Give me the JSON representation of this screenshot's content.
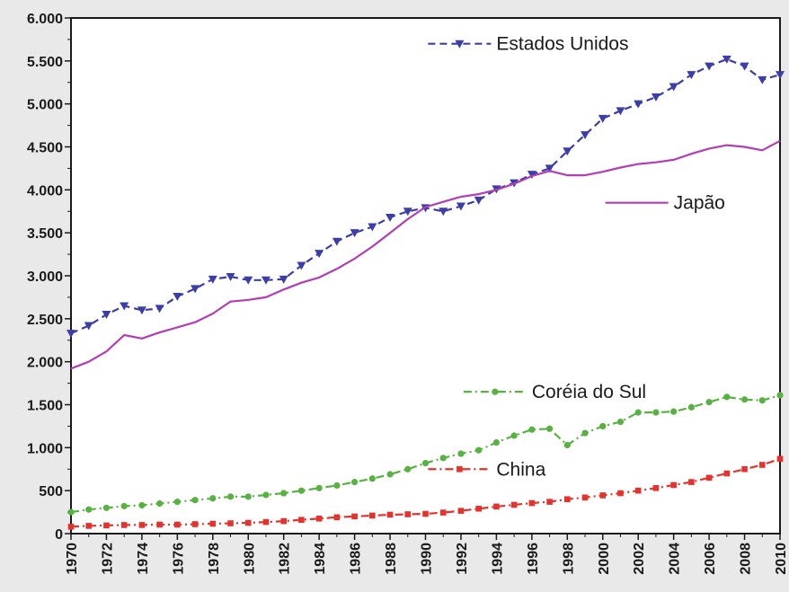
{
  "chart_data": {
    "type": "line",
    "title": "",
    "xlabel": "",
    "ylabel": "",
    "xlim": [
      1970,
      2010
    ],
    "ylim": [
      0,
      6000
    ],
    "grid": false,
    "x": [
      1970,
      1971,
      1972,
      1973,
      1974,
      1975,
      1976,
      1977,
      1978,
      1979,
      1980,
      1981,
      1982,
      1983,
      1984,
      1985,
      1986,
      1987,
      1988,
      1989,
      1990,
      1991,
      1992,
      1993,
      1994,
      1995,
      1996,
      1997,
      1998,
      1999,
      2000,
      2001,
      2002,
      2003,
      2004,
      2005,
      2006,
      2007,
      2008,
      2009,
      2010
    ],
    "x_tick_labels": [
      "1970",
      "1972",
      "1974",
      "1976",
      "1978",
      "1980",
      "1982",
      "1984",
      "1986",
      "1988",
      "1990",
      "1992",
      "1994",
      "1996",
      "1998",
      "2000",
      "2002",
      "2004",
      "2006",
      "2008",
      "2010"
    ],
    "y_tick_labels": [
      "0",
      "500",
      "1.000",
      "1.500",
      "2.000",
      "2.500",
      "3.000",
      "3.500",
      "4.000",
      "4.500",
      "5.000",
      "5.500",
      "6.000"
    ],
    "y_ticks": [
      0,
      500,
      1000,
      1500,
      2000,
      2500,
      3000,
      3500,
      4000,
      4500,
      5000,
      5500,
      6000
    ],
    "series": [
      {
        "name": "Estados Unidos",
        "color": "#3b3ea8",
        "style": "dashed",
        "marker": "triangle-down",
        "label_anchor": [
          1994,
          5700
        ],
        "values": [
          2330,
          2420,
          2550,
          2650,
          2600,
          2620,
          2760,
          2850,
          2960,
          2990,
          2950,
          2950,
          2960,
          3120,
          3260,
          3400,
          3500,
          3570,
          3680,
          3750,
          3790,
          3750,
          3810,
          3880,
          4010,
          4080,
          4180,
          4250,
          4450,
          4640,
          4830,
          4920,
          5000,
          5080,
          5200,
          5340,
          5440,
          5520,
          5440,
          5280,
          5340
        ]
      },
      {
        "name": "Japão",
        "color": "#b13eb2",
        "style": "solid",
        "marker": "none",
        "label_anchor": [
          2004,
          3850
        ],
        "values": [
          1920,
          2000,
          2120,
          2310,
          2270,
          2340,
          2400,
          2460,
          2560,
          2700,
          2720,
          2750,
          2840,
          2920,
          2980,
          3080,
          3200,
          3340,
          3500,
          3660,
          3800,
          3860,
          3920,
          3950,
          4000,
          4070,
          4160,
          4220,
          4170,
          4170,
          4210,
          4260,
          4300,
          4320,
          4350,
          4420,
          4480,
          4520,
          4500,
          4460,
          4570
        ]
      },
      {
        "name": "Coréia do Sul",
        "color": "#57b241",
        "style": "dash-dot",
        "marker": "circle",
        "label_anchor": [
          1996,
          1650
        ],
        "values": [
          250,
          280,
          300,
          320,
          330,
          350,
          370,
          390,
          410,
          430,
          430,
          450,
          470,
          500,
          530,
          560,
          600,
          640,
          690,
          750,
          820,
          880,
          930,
          970,
          1060,
          1140,
          1210,
          1220,
          1030,
          1170,
          1250,
          1300,
          1410,
          1410,
          1420,
          1470,
          1530,
          1590,
          1560,
          1550,
          1610
        ]
      },
      {
        "name": "China",
        "color": "#e5322d",
        "style": "dash-dot",
        "marker": "square",
        "label_anchor": [
          1994,
          750
        ],
        "values": [
          80,
          90,
          95,
          100,
          100,
          105,
          105,
          110,
          115,
          120,
          125,
          135,
          145,
          160,
          175,
          190,
          200,
          210,
          220,
          225,
          230,
          245,
          265,
          290,
          315,
          335,
          355,
          370,
          400,
          420,
          445,
          470,
          500,
          530,
          565,
          600,
          650,
          700,
          750,
          800,
          870
        ]
      }
    ]
  }
}
